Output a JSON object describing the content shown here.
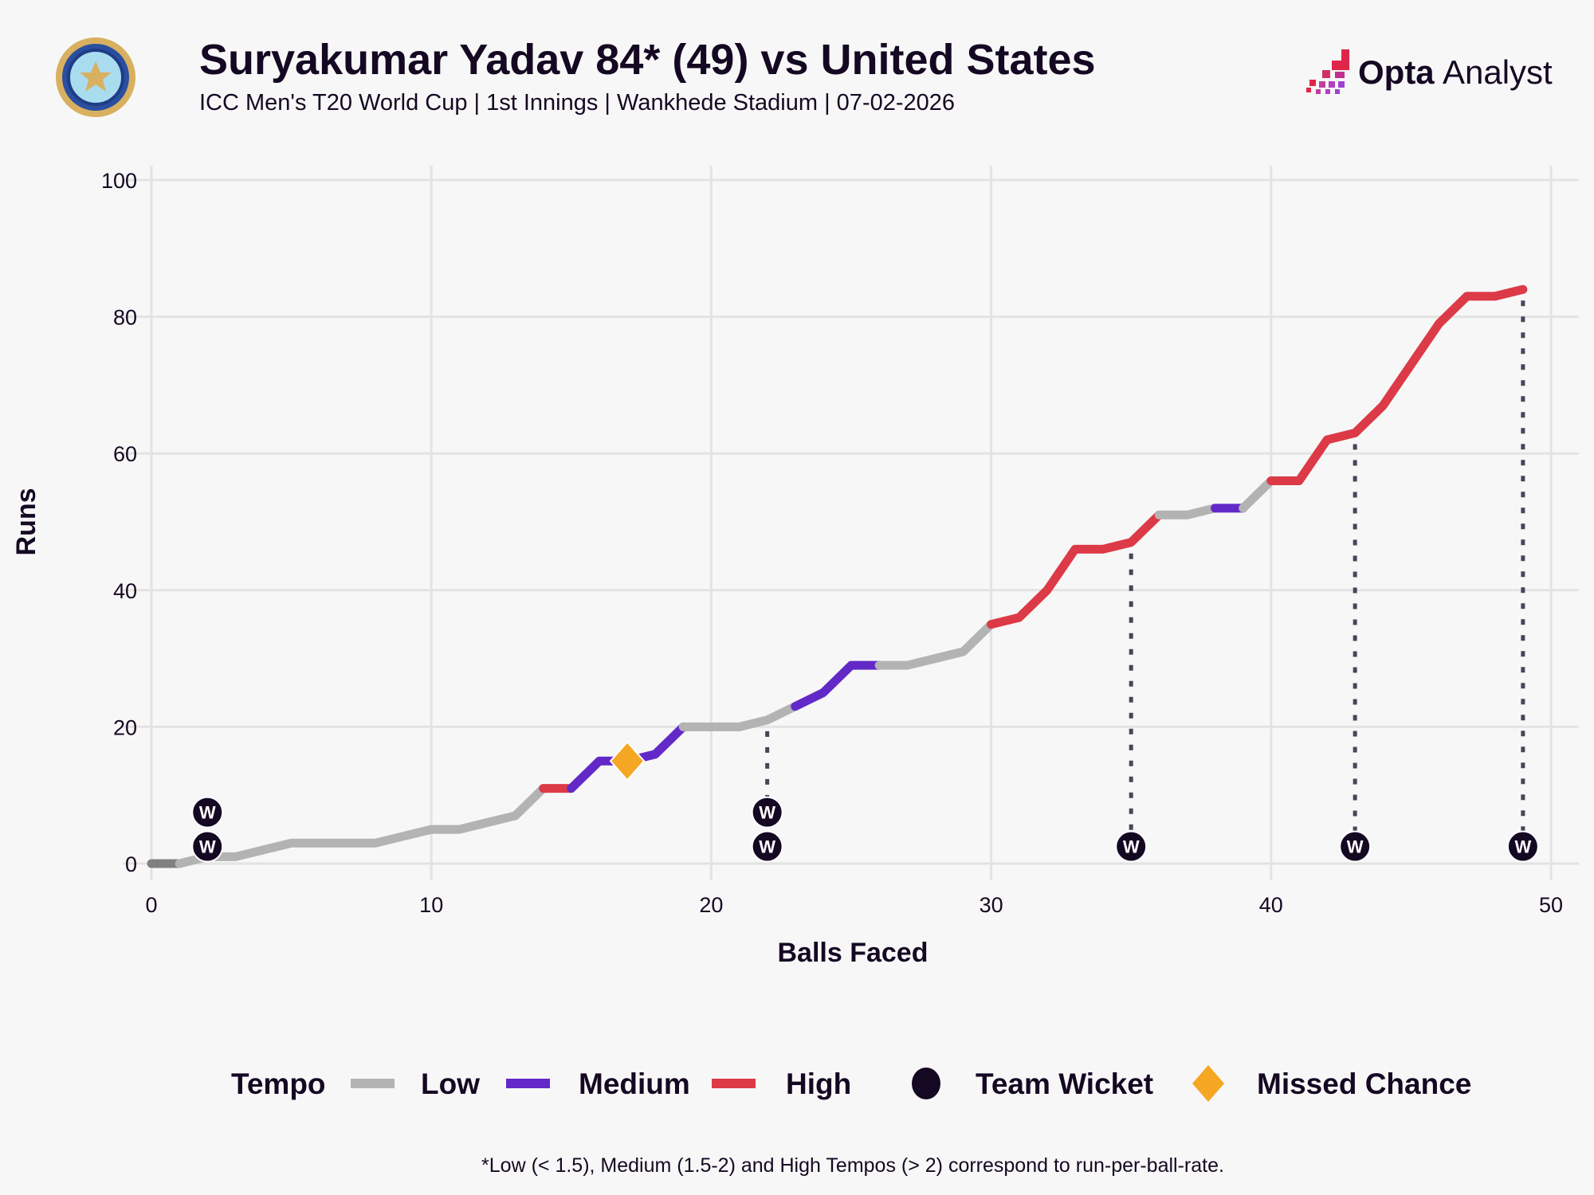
{
  "header": {
    "title": "Suryakumar Yadav 84* (49) vs United States",
    "subtitle": "ICC Men's T20 World Cup | 1st Innings | Wankhede Stadium | 07-02-2026",
    "brand_opta": "Opta",
    "brand_analyst": "Analyst"
  },
  "colors": {
    "low": "#b3b3b3",
    "start": "#808080",
    "medium": "#6229c8",
    "high": "#dc3a46",
    "wicket": "#150822",
    "missed": "#f5a623"
  },
  "chart_data": {
    "type": "line",
    "xlabel": "Balls Faced",
    "ylabel": "Runs",
    "xlim": [
      0,
      50
    ],
    "ylim": [
      0,
      100
    ],
    "xticks": [
      0,
      10,
      20,
      30,
      40,
      50
    ],
    "yticks": [
      0,
      20,
      40,
      60,
      80,
      100
    ],
    "grid": true,
    "x": [
      0,
      1,
      2,
      3,
      4,
      5,
      6,
      7,
      8,
      9,
      10,
      11,
      12,
      13,
      14,
      15,
      16,
      17,
      18,
      19,
      20,
      21,
      22,
      23,
      24,
      25,
      26,
      27,
      28,
      29,
      30,
      31,
      32,
      33,
      34,
      35,
      36,
      37,
      38,
      39,
      40,
      41,
      42,
      43,
      44,
      45,
      46,
      47,
      48,
      49
    ],
    "y": [
      0,
      0,
      1,
      1,
      2,
      3,
      3,
      3,
      3,
      4,
      5,
      5,
      6,
      7,
      11,
      11,
      15,
      15,
      16,
      20,
      20,
      20,
      21,
      23,
      25,
      29,
      29,
      29,
      30,
      31,
      35,
      36,
      40,
      46,
      46,
      47,
      51,
      51,
      52,
      52,
      56,
      56,
      62,
      63,
      67,
      73,
      79,
      83,
      83,
      84
    ],
    "segments": [
      {
        "from": 0,
        "to": 1,
        "tempo": "start"
      },
      {
        "from": 1,
        "to": 14,
        "tempo": "low"
      },
      {
        "from": 14,
        "to": 15,
        "tempo": "high"
      },
      {
        "from": 15,
        "to": 19,
        "tempo": "medium"
      },
      {
        "from": 19,
        "to": 23,
        "tempo": "low"
      },
      {
        "from": 23,
        "to": 26,
        "tempo": "medium"
      },
      {
        "from": 26,
        "to": 30,
        "tempo": "low"
      },
      {
        "from": 30,
        "to": 36,
        "tempo": "high"
      },
      {
        "from": 36,
        "to": 38,
        "tempo": "low"
      },
      {
        "from": 38,
        "to": 39,
        "tempo": "medium"
      },
      {
        "from": 39,
        "to": 40,
        "tempo": "low"
      },
      {
        "from": 40,
        "to": 49,
        "tempo": "high"
      }
    ],
    "wickets": [
      {
        "ball": 2,
        "count": 2,
        "dotted": false
      },
      {
        "ball": 22,
        "count": 2,
        "dotted": true
      },
      {
        "ball": 35,
        "count": 1,
        "dotted": true
      },
      {
        "ball": 43,
        "count": 1,
        "dotted": true
      },
      {
        "ball": 49,
        "count": 1,
        "dotted": true
      }
    ],
    "wicket_marker_label": "W",
    "missed_chances": [
      {
        "ball": 17,
        "runs": 15
      }
    ],
    "legend": {
      "title": "Tempo",
      "low": "Low",
      "medium": "Medium",
      "high": "High",
      "wicket": "Team Wicket",
      "missed": "Missed Chance",
      "placement": "bottom"
    },
    "footnote": "*Low (< 1.5), Medium (1.5-2) and High Tempos (> 2) correspond to run-per-ball-rate."
  }
}
